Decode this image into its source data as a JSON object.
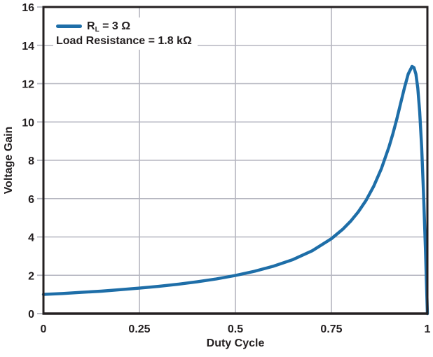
{
  "figure": {
    "x_axis_title": "Duty Cycle",
    "y_axis_title": "Voltage Gain"
  },
  "legend": {
    "series_label_base": "R",
    "series_label_sub": "L",
    "series_label_rest": " = 3 Ω",
    "annotation": "Load Resistance = 1.8 kΩ"
  },
  "colors": {
    "line": "#1E6EA8",
    "grid": "#B5B6C0",
    "axis": "#231F20",
    "text": "#231F20",
    "background": "#FFFFFF"
  },
  "chart_data": {
    "type": "line",
    "title": "",
    "xlabel": "Duty Cycle",
    "ylabel": "Voltage Gain",
    "xlim": [
      0,
      1
    ],
    "ylim": [
      0,
      16
    ],
    "grid": true,
    "legend_position": "top-left",
    "x_ticks": {
      "values": [
        0,
        0.25,
        0.5,
        0.75,
        1
      ],
      "labels": [
        "0",
        "0.25",
        "0.5",
        "0.75",
        "1"
      ]
    },
    "y_ticks": {
      "values": [
        0,
        2,
        4,
        6,
        8,
        10,
        12,
        14,
        16
      ],
      "labels": [
        "0",
        "2",
        "4",
        "6",
        "8",
        "10",
        "12",
        "14",
        "16"
      ]
    },
    "series": [
      {
        "name": "RL = 3 Ω",
        "annotation": "Load Resistance = 1.8 kΩ",
        "color": "#1E6EA8",
        "points": [
          [
            0,
            1.0
          ],
          [
            0.05,
            1.05
          ],
          [
            0.1,
            1.11
          ],
          [
            0.15,
            1.17
          ],
          [
            0.2,
            1.25
          ],
          [
            0.25,
            1.33
          ],
          [
            0.3,
            1.42
          ],
          [
            0.35,
            1.53
          ],
          [
            0.4,
            1.66
          ],
          [
            0.45,
            1.81
          ],
          [
            0.5,
            1.99
          ],
          [
            0.55,
            2.21
          ],
          [
            0.6,
            2.48
          ],
          [
            0.65,
            2.82
          ],
          [
            0.7,
            3.28
          ],
          [
            0.75,
            3.91
          ],
          [
            0.78,
            4.41
          ],
          [
            0.8,
            4.82
          ],
          [
            0.82,
            5.31
          ],
          [
            0.84,
            5.9
          ],
          [
            0.86,
            6.64
          ],
          [
            0.88,
            7.55
          ],
          [
            0.9,
            8.7
          ],
          [
            0.91,
            9.38
          ],
          [
            0.92,
            10.13
          ],
          [
            0.93,
            10.94
          ],
          [
            0.94,
            11.76
          ],
          [
            0.95,
            12.5
          ],
          [
            0.96,
            12.9
          ],
          [
            0.965,
            12.84
          ],
          [
            0.97,
            12.5
          ],
          [
            0.975,
            11.77
          ],
          [
            0.98,
            10.53
          ],
          [
            0.985,
            8.7
          ],
          [
            0.99,
            6.25
          ],
          [
            0.995,
            3.28
          ],
          [
            1.0,
            0
          ]
        ],
        "peak": {
          "x": 0.96,
          "y": 12.9
        }
      }
    ]
  }
}
